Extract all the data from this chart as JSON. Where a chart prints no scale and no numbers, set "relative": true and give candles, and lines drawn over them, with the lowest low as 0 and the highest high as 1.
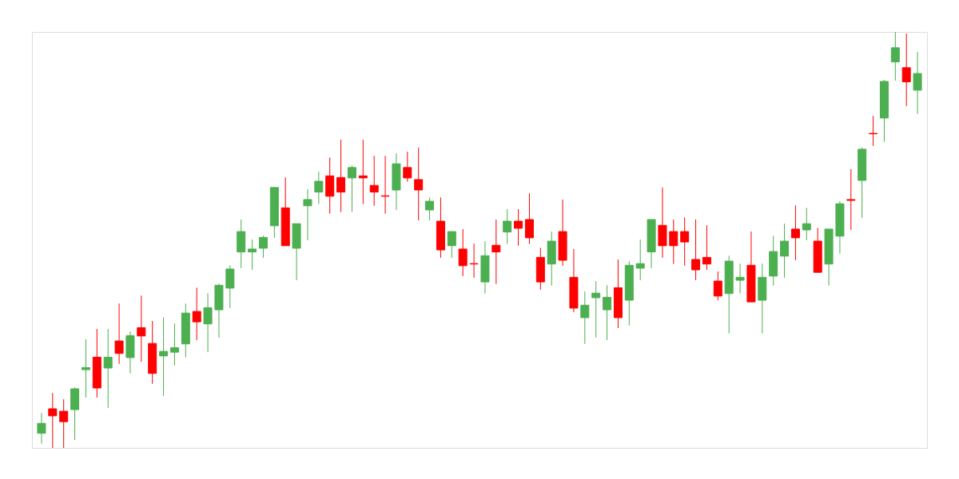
{
  "chart_data": {
    "type": "candlestick",
    "relative": true,
    "categories": [
      null,
      null,
      null,
      null,
      null,
      null,
      null,
      null,
      null,
      null,
      null,
      null,
      null,
      null,
      null,
      null,
      null,
      null,
      null,
      null,
      null,
      null,
      null,
      null,
      null,
      null,
      null,
      null,
      null,
      null,
      null,
      null,
      null,
      null,
      null,
      null,
      null,
      null,
      null,
      null,
      null,
      null,
      null,
      null,
      null,
      null,
      null,
      null,
      null,
      null,
      null,
      null,
      null,
      null,
      null,
      null,
      null,
      null,
      null,
      null,
      null,
      null,
      null,
      null,
      null,
      null,
      null,
      null,
      null,
      null,
      null,
      null,
      null,
      null,
      null,
      null,
      null,
      null,
      null,
      null
    ],
    "ohlc": [
      [
        0.035,
        0.084,
        0.01,
        0.059
      ],
      [
        0.094,
        0.132,
        0.0,
        0.077
      ],
      [
        0.088,
        0.117,
        0.0,
        0.063
      ],
      [
        0.092,
        0.145,
        0.019,
        0.142
      ],
      [
        0.188,
        0.261,
        0.121,
        0.193
      ],
      [
        0.218,
        0.286,
        0.121,
        0.144
      ],
      [
        0.192,
        0.286,
        0.096,
        0.218
      ],
      [
        0.257,
        0.347,
        0.202,
        0.227
      ],
      [
        0.217,
        0.28,
        0.179,
        0.27
      ],
      [
        0.289,
        0.366,
        0.207,
        0.269
      ],
      [
        0.251,
        0.305,
        0.154,
        0.179
      ],
      [
        0.221,
        0.314,
        0.125,
        0.232
      ],
      [
        0.23,
        0.299,
        0.198,
        0.241
      ],
      [
        0.25,
        0.347,
        0.218,
        0.324
      ],
      [
        0.328,
        0.385,
        0.259,
        0.303
      ],
      [
        0.298,
        0.372,
        0.23,
        0.337
      ],
      [
        0.332,
        0.395,
        0.265,
        0.391
      ],
      [
        0.384,
        0.439,
        0.336,
        0.43
      ],
      [
        0.471,
        0.549,
        0.432,
        0.52
      ],
      [
        0.471,
        0.501,
        0.428,
        0.478
      ],
      [
        0.48,
        0.51,
        0.457,
        0.506
      ],
      [
        0.534,
        0.626,
        0.505,
        0.626
      ],
      [
        0.577,
        0.65,
        0.486,
        0.486
      ],
      [
        0.48,
        0.539,
        0.403,
        0.539
      ],
      [
        0.582,
        0.622,
        0.499,
        0.597
      ],
      [
        0.615,
        0.664,
        0.586,
        0.641
      ],
      [
        0.654,
        0.698,
        0.563,
        0.605
      ],
      [
        0.65,
        0.741,
        0.567,
        0.615
      ],
      [
        0.649,
        0.679,
        0.567,
        0.674
      ],
      [
        0.654,
        0.741,
        0.586,
        0.649
      ],
      [
        0.631,
        0.702,
        0.582,
        0.615
      ],
      [
        0.606,
        0.702,
        0.563,
        0.605
      ],
      [
        0.62,
        0.708,
        0.572,
        0.683
      ],
      [
        0.674,
        0.712,
        0.64,
        0.649
      ],
      [
        0.645,
        0.722,
        0.547,
        0.62
      ],
      [
        0.572,
        0.602,
        0.547,
        0.593
      ],
      [
        0.545,
        0.602,
        0.457,
        0.476
      ],
      [
        0.486,
        0.52,
        0.457,
        0.52
      ],
      [
        0.478,
        0.526,
        0.413,
        0.438
      ],
      [
        0.443,
        0.491,
        0.409,
        0.442
      ],
      [
        0.399,
        0.497,
        0.371,
        0.462
      ],
      [
        0.487,
        0.549,
        0.394,
        0.471
      ],
      [
        0.519,
        0.574,
        0.49,
        0.545
      ],
      [
        0.545,
        0.574,
        0.486,
        0.528
      ],
      [
        0.549,
        0.612,
        0.49,
        0.505
      ],
      [
        0.458,
        0.481,
        0.38,
        0.399
      ],
      [
        0.442,
        0.52,
        0.39,
        0.497
      ],
      [
        0.52,
        0.597,
        0.438,
        0.451
      ],
      [
        0.41,
        0.478,
        0.326,
        0.336
      ],
      [
        0.313,
        0.376,
        0.25,
        0.343
      ],
      [
        0.361,
        0.401,
        0.265,
        0.372
      ],
      [
        0.332,
        0.391,
        0.259,
        0.362
      ],
      [
        0.385,
        0.453,
        0.288,
        0.313
      ],
      [
        0.355,
        0.449,
        0.294,
        0.439
      ],
      [
        0.432,
        0.501,
        0.403,
        0.443
      ],
      [
        0.471,
        0.549,
        0.432,
        0.549
      ],
      [
        0.535,
        0.626,
        0.457,
        0.486
      ],
      [
        0.52,
        0.549,
        0.442,
        0.486
      ],
      [
        0.52,
        0.554,
        0.438,
        0.495
      ],
      [
        0.453,
        0.549,
        0.403,
        0.428
      ],
      [
        0.458,
        0.535,
        0.428,
        0.442
      ],
      [
        0.401,
        0.424,
        0.355,
        0.365
      ],
      [
        0.371,
        0.462,
        0.275,
        0.449
      ],
      [
        0.403,
        0.443,
        0.371,
        0.41
      ],
      [
        0.439,
        0.52,
        0.351,
        0.351
      ],
      [
        0.355,
        0.443,
        0.275,
        0.41
      ],
      [
        0.413,
        0.51,
        0.39,
        0.472
      ],
      [
        0.461,
        0.539,
        0.409,
        0.497
      ],
      [
        0.526,
        0.583,
        0.451,
        0.505
      ],
      [
        0.524,
        0.577,
        0.499,
        0.539
      ],
      [
        0.497,
        0.529,
        0.422,
        0.422
      ],
      [
        0.442,
        0.526,
        0.39,
        0.526
      ],
      [
        0.509,
        0.593,
        0.467,
        0.587
      ],
      [
        0.597,
        0.67,
        0.524,
        0.595
      ],
      [
        0.643,
        0.722,
        0.553,
        0.718
      ],
      [
        0.756,
        0.798,
        0.726,
        0.755
      ],
      [
        0.793,
        0.885,
        0.736,
        0.881
      ],
      [
        0.928,
        1.0,
        0.883,
        0.962
      ],
      [
        0.914,
        0.996,
        0.822,
        0.88
      ],
      [
        0.86,
        0.952,
        0.803,
        0.9
      ]
    ],
    "colors": [
      "#4caf50",
      "#ff0000",
      "#ff0000",
      "#4caf50",
      "#4caf50",
      "#ff0000",
      "#4caf50",
      "#ff0000",
      "#4caf50",
      "#ff0000",
      "#ff0000",
      "#4caf50",
      "#4caf50",
      "#4caf50",
      "#ff0000",
      "#4caf50",
      "#4caf50",
      "#4caf50",
      "#4caf50",
      "#4caf50",
      "#4caf50",
      "#4caf50",
      "#ff0000",
      "#4caf50",
      "#4caf50",
      "#4caf50",
      "#ff0000",
      "#ff0000",
      "#4caf50",
      "#ff0000",
      "#ff0000",
      "#ff0000",
      "#4caf50",
      "#ff0000",
      "#ff0000",
      "#4caf50",
      "#ff0000",
      "#4caf50",
      "#ff0000",
      "#ff0000",
      "#4caf50",
      "#ff0000",
      "#4caf50",
      "#ff0000",
      "#ff0000",
      "#ff0000",
      "#4caf50",
      "#ff0000",
      "#ff0000",
      "#4caf50",
      "#4caf50",
      "#4caf50",
      "#ff0000",
      "#4caf50",
      "#4caf50",
      "#4caf50",
      "#ff0000",
      "#ff0000",
      "#ff0000",
      "#ff0000",
      "#ff0000",
      "#ff0000",
      "#4caf50",
      "#4caf50",
      "#ff0000",
      "#4caf50",
      "#4caf50",
      "#4caf50",
      "#ff0000",
      "#4caf50",
      "#ff0000",
      "#4caf50",
      "#4caf50",
      "#ff0000",
      "#4caf50",
      "#ff0000",
      "#4caf50",
      "#4caf50",
      "#ff0000",
      "#4caf50"
    ]
  }
}
